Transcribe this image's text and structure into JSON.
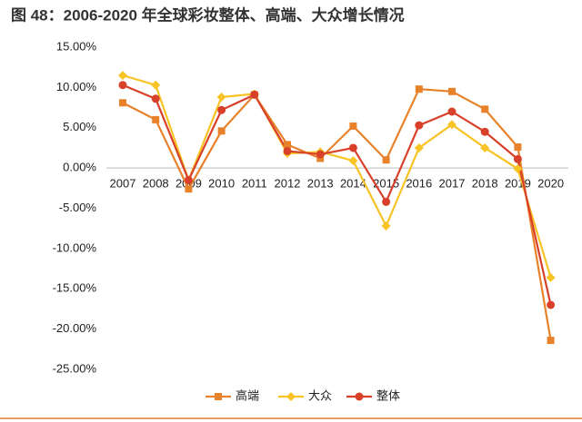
{
  "chart_data": {
    "type": "line",
    "title": "图 48：2006-2020 年全球彩妆整体、高端、大众增长情况",
    "categories": [
      "2007",
      "2008",
      "2009",
      "2010",
      "2011",
      "2012",
      "2013",
      "2014",
      "2015",
      "2016",
      "2017",
      "2018",
      "2019",
      "2020"
    ],
    "series": [
      {
        "name": "高端",
        "color": "#e8822a",
        "marker": "square",
        "values": [
          8.1,
          6.0,
          -2.6,
          4.6,
          9.1,
          2.9,
          1.2,
          5.2,
          1.0,
          9.8,
          9.5,
          7.3,
          2.6,
          -21.4
        ]
      },
      {
        "name": "大众",
        "color": "#f7c325",
        "marker": "diamond",
        "values": [
          11.5,
          10.3,
          -1.5,
          8.8,
          9.2,
          1.8,
          2.0,
          0.9,
          -7.2,
          2.5,
          5.4,
          2.5,
          -0.1,
          -13.6
        ]
      },
      {
        "name": "整体",
        "color": "#d8402a",
        "marker": "circle",
        "values": [
          10.3,
          8.6,
          -1.5,
          7.2,
          9.1,
          2.1,
          1.7,
          2.5,
          -4.2,
          5.3,
          7.0,
          4.5,
          1.1,
          -17.0
        ]
      }
    ],
    "ylim": [
      -25,
      15
    ],
    "yticks": [
      {
        "value": 15,
        "label": "15.00%"
      },
      {
        "value": 10,
        "label": "10.00%"
      },
      {
        "value": 5,
        "label": "5.00%"
      },
      {
        "value": 0,
        "label": "0.00%"
      },
      {
        "value": -5,
        "label": "-5.00%"
      },
      {
        "value": -10,
        "label": "-10.00%"
      },
      {
        "value": -15,
        "label": "-15.00%"
      },
      {
        "value": -20,
        "label": "-20.00%"
      },
      {
        "value": -25,
        "label": "-25.00%"
      }
    ],
    "legend": "bottom"
  }
}
